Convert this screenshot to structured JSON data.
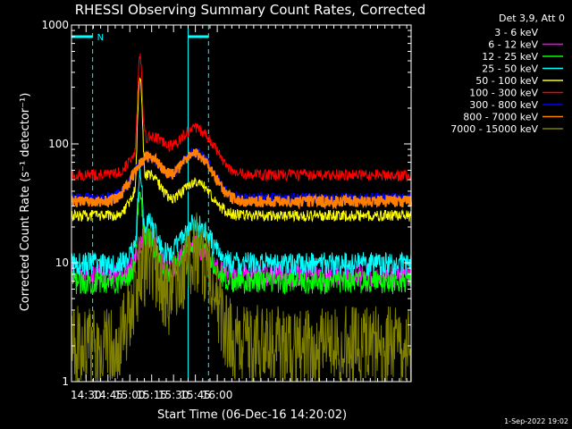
{
  "chart_data": {
    "type": "line",
    "title": "RHESSI Observing Summary Count Rates, Corrected",
    "xlabel": "Start Time (06-Dec-16 14:20:02)",
    "ylabel": "Corrected Count Rate (s⁻¹ detector⁻¹)",
    "yscale": "log",
    "ylim": [
      1,
      1000
    ],
    "y_ticks": [
      1,
      10,
      100,
      1000
    ],
    "y_tick_labels": [
      "1",
      "10",
      "100",
      "1000"
    ],
    "x_range_min": [
      0,
      233
    ],
    "x_ticks": [
      10,
      25,
      40,
      55,
      70,
      85,
      100
    ],
    "x_tick_labels": [
      "14:30",
      "14:45",
      "15:00",
      "15:15",
      "15:30",
      "15:45",
      "16:00"
    ],
    "legend_title": "Det 3,9, Att 0",
    "legend_position": "right",
    "timestamp": "1-Sep-2022 19:02",
    "bars": [
      {
        "label": "N",
        "start_min": 0,
        "end_min": 14.5,
        "color": "#00ffff"
      },
      {
        "label": "",
        "start_min": 80,
        "end_min": 94,
        "color": "#00ffff"
      }
    ],
    "markers": [
      {
        "at_min": 14.5,
        "style": "dashed",
        "color": "#00ffff"
      },
      {
        "at_min": 80,
        "style": "solid",
        "color": "#00ffff"
      },
      {
        "at_min": 94,
        "style": "dashed",
        "color": "#00ffff"
      }
    ],
    "series": [
      {
        "name": "3 - 6 keV",
        "color": "#000000",
        "shape": {
          "baseline": 35,
          "bump1": [
            15,
            55,
            8
          ],
          "bump2": [
            8,
            85,
            8
          ]
        }
      },
      {
        "name": "6 - 12 keV",
        "color": "#ff00ff",
        "shape": {
          "baseline": 8,
          "bump1": [
            9,
            52,
            6
          ],
          "bump2": [
            6,
            85,
            9
          ]
        }
      },
      {
        "name": "12 - 25 keV",
        "color": "#00ff00",
        "shape": {
          "baseline": 7,
          "bump1": [
            9,
            52,
            6
          ],
          "bump2": [
            8,
            85,
            9
          ]
        }
      },
      {
        "name": "25 - 50 keV",
        "color": "#00ffff",
        "shape": {
          "baseline": 10,
          "bump1": [
            12,
            52,
            6
          ],
          "bump2": [
            11,
            85,
            9
          ]
        }
      },
      {
        "name": "50 - 100 keV",
        "color": "#ffff00",
        "shape": {
          "baseline": 25,
          "bump1": [
            30,
            53,
            8
          ],
          "bump2": [
            22,
            85,
            10
          ]
        }
      },
      {
        "name": "100 - 300 keV",
        "color": "#ff0000",
        "shape": {
          "baseline": 55,
          "bump1": [
            60,
            54,
            9
          ],
          "bump2": [
            80,
            85,
            11
          ]
        }
      },
      {
        "name": "300 - 800 keV",
        "color": "#0000ff",
        "shape": {
          "baseline": 35,
          "bump1": [
            40,
            53,
            9
          ],
          "bump2": [
            50,
            85,
            10
          ]
        }
      },
      {
        "name": "800 - 7000 keV",
        "color": "#ff7f00",
        "shape": {
          "baseline": 33,
          "bump1": [
            45,
            53,
            9
          ],
          "bump2": [
            50,
            85,
            10
          ]
        }
      },
      {
        "name": "7000 - 15000 keV",
        "color": "#7f7f00",
        "shape": {
          "baseline": 1.6,
          "bump1": [
            6,
            53,
            8
          ],
          "bump2": [
            8,
            85,
            9
          ]
        }
      }
    ],
    "flare": {
      "peak_min": 47,
      "width_min": 1.2,
      "values": {
        "100 - 300 keV": 450,
        "50 - 100 keV": 300,
        "25 - 50 keV": 36,
        "12 - 25 keV": 30
      }
    }
  }
}
